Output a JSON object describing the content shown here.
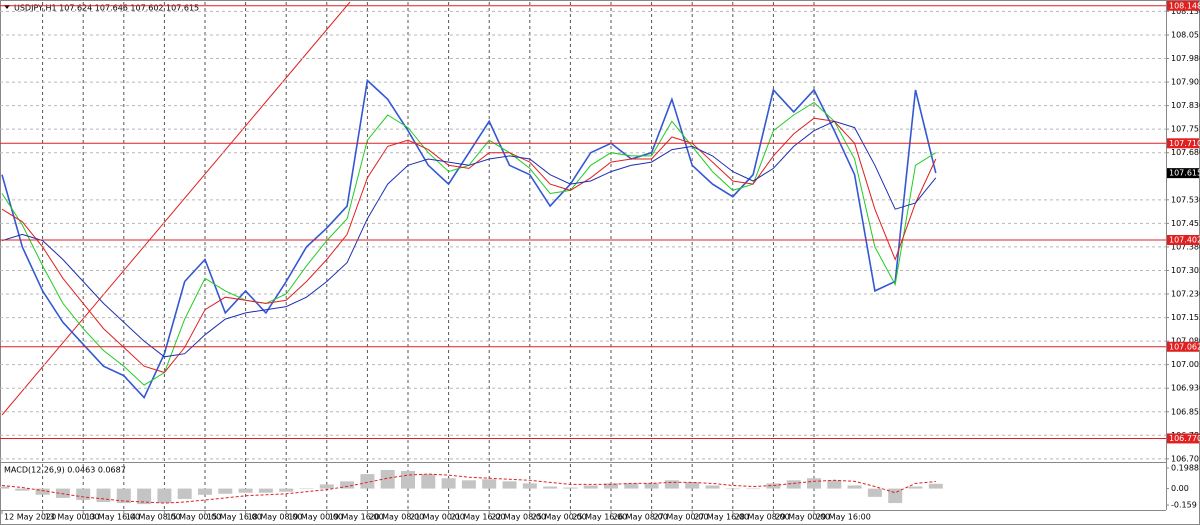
{
  "chart_data": [
    {
      "type": "line",
      "title": "USDJPY,H1  107.624 107.646 107.602 107.615",
      "categories": [
        "12 May 2020",
        null,
        "13 May 00:00",
        null,
        "13 May 16:00",
        null,
        "14 May 08:00",
        null,
        "15 May 00:00",
        null,
        "15 May 16:00",
        null,
        "18 May 08:00",
        null,
        "19 May 00:00",
        null,
        "19 May 16:00",
        null,
        "20 May 08:00",
        null,
        "21 May 00:00",
        null,
        "21 May 16:00",
        null,
        "22 May 08:00",
        null,
        "25 May 00:00",
        null,
        "25 May 16:00",
        null,
        "26 May 08:00",
        null,
        "27 May 00:00",
        null,
        "27 May 16:00",
        null,
        "28 May 08:00",
        null,
        "29 May 00:00",
        null,
        "29 May 16:00",
        null,
        null,
        null,
        null,
        null,
        null
      ],
      "series": [
        {
          "color": "#3358d4",
          "width": 1.6,
          "values": [
            107.61,
            107.38,
            107.24,
            107.14,
            107.07,
            107.0,
            106.97,
            106.9,
            107.04,
            107.27,
            107.34,
            107.17,
            107.24,
            107.17,
            107.27,
            107.38,
            107.44,
            107.51,
            107.91,
            107.85,
            107.75,
            107.64,
            107.58,
            107.68,
            107.78,
            107.64,
            107.61,
            107.51,
            107.58,
            107.68,
            107.71,
            107.66,
            107.68,
            107.85,
            107.64,
            107.58,
            107.54,
            107.61,
            107.88,
            107.81,
            107.88,
            107.75,
            107.61,
            107.24,
            107.27,
            107.88,
            107.615
          ]
        },
        {
          "color": "#22cc22",
          "width": 1,
          "values": [
            107.55,
            107.45,
            107.32,
            107.2,
            107.12,
            107.05,
            107.0,
            106.94,
            106.98,
            107.15,
            107.28,
            107.24,
            107.21,
            107.2,
            107.23,
            107.32,
            107.4,
            107.47,
            107.72,
            107.8,
            107.76,
            107.68,
            107.62,
            107.64,
            107.72,
            107.68,
            107.63,
            107.55,
            107.56,
            107.64,
            107.68,
            107.67,
            107.67,
            107.78,
            107.7,
            107.62,
            107.56,
            107.58,
            107.75,
            107.8,
            107.84,
            107.78,
            107.66,
            107.38,
            107.26,
            107.64,
            107.68
          ]
        },
        {
          "color": "#e02020",
          "width": 1,
          "values": [
            107.5,
            107.46,
            107.38,
            107.28,
            107.2,
            107.12,
            107.06,
            107.0,
            106.98,
            107.06,
            107.18,
            107.22,
            107.21,
            107.2,
            107.21,
            107.27,
            107.34,
            107.42,
            107.6,
            107.7,
            107.72,
            107.69,
            107.64,
            107.63,
            107.68,
            107.68,
            107.65,
            107.58,
            107.56,
            107.6,
            107.65,
            107.66,
            107.66,
            107.73,
            107.71,
            107.65,
            107.59,
            107.58,
            107.67,
            107.74,
            107.79,
            107.78,
            107.71,
            107.5,
            107.34,
            107.52,
            107.66
          ]
        },
        {
          "color": "#1e2fb0",
          "width": 1,
          "values": [
            107.4,
            107.42,
            107.4,
            107.34,
            107.27,
            107.2,
            107.14,
            107.08,
            107.03,
            107.04,
            107.1,
            107.15,
            107.17,
            107.18,
            107.19,
            107.22,
            107.27,
            107.33,
            107.47,
            107.58,
            107.64,
            107.66,
            107.65,
            107.64,
            107.66,
            107.67,
            107.66,
            107.61,
            107.58,
            107.59,
            107.62,
            107.64,
            107.65,
            107.69,
            107.7,
            107.67,
            107.62,
            107.59,
            107.63,
            107.7,
            107.75,
            107.78,
            107.76,
            107.64,
            107.5,
            107.52,
            107.6
          ]
        }
      ],
      "ylim": [
        106.695,
        108.16
      ],
      "yticks": [
        {
          "value": 108.13,
          "label": "108.130"
        },
        108.055,
        {
          "value": 107.98,
          "label": "107.980"
        },
        107.905,
        {
          "value": 107.83,
          "label": "107.830"
        },
        107.755,
        {
          "value": 107.68,
          "label": "107.680"
        },
        {
          "value": 107.53,
          "label": "107.530"
        },
        107.455,
        {
          "value": 107.38,
          "label": "107.380"
        },
        107.305,
        {
          "value": 107.23,
          "label": "107.230"
        },
        107.155,
        {
          "value": 107.08,
          "label": "107.080"
        },
        107.005,
        {
          "value": 106.93,
          "label": "106.930"
        },
        106.855,
        {
          "value": 106.78,
          "label": "106.780"
        },
        106.705
      ],
      "levels": [
        108.148,
        {
          "value": 107.71,
          "label": "107.710"
        },
        107.402,
        107.062,
        {
          "value": 106.77,
          "label": "106.770"
        }
      ],
      "level_color": "#e02020",
      "current_price": 107.615,
      "grid": true
    },
    {
      "type": "bar",
      "title": "MACD(12,26,9) 0.0463 0.0687",
      "series": [
        {
          "type": "bar",
          "color": "#c4c4c4",
          "values": [
            0.02,
            -0.02,
            -0.06,
            -0.09,
            -0.11,
            -0.13,
            -0.14,
            -0.15,
            -0.14,
            -0.1,
            -0.06,
            -0.05,
            -0.04,
            -0.04,
            -0.03,
            0.0,
            0.04,
            0.07,
            0.14,
            0.18,
            0.17,
            0.14,
            0.1,
            0.08,
            0.09,
            0.07,
            0.05,
            0.02,
            0.01,
            0.03,
            0.05,
            0.05,
            0.05,
            0.08,
            0.06,
            0.03,
            0.0,
            0.0,
            0.05,
            0.08,
            0.1,
            0.08,
            0.03,
            -0.08,
            -0.14,
            0.02,
            0.0463
          ]
        },
        {
          "type": "line",
          "style": "dashed",
          "color": "#e02020",
          "values": [
            0.03,
            0.01,
            -0.02,
            -0.05,
            -0.08,
            -0.1,
            -0.12,
            -0.13,
            -0.14,
            -0.13,
            -0.11,
            -0.09,
            -0.07,
            -0.06,
            -0.05,
            -0.03,
            -0.01,
            0.02,
            0.06,
            0.1,
            0.13,
            0.14,
            0.13,
            0.11,
            0.1,
            0.09,
            0.08,
            0.06,
            0.04,
            0.04,
            0.04,
            0.05,
            0.05,
            0.06,
            0.06,
            0.05,
            0.03,
            0.02,
            0.03,
            0.05,
            0.07,
            0.08,
            0.07,
            0.02,
            -0.04,
            0.05,
            0.0687
          ]
        }
      ],
      "ylim": [
        -0.207,
        0.2375
      ],
      "yticks": [
        0.1988,
        {
          "value": 0,
          "label": "0.00"
        },
        -0.159
      ]
    }
  ]
}
